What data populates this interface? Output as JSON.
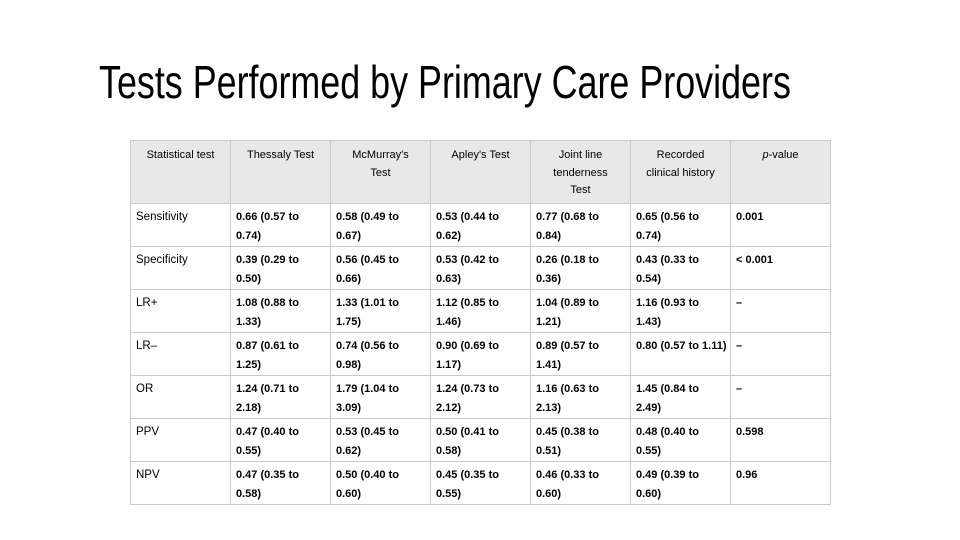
{
  "slide": {
    "title": "Tests Performed by Primary Care Providers"
  },
  "table": {
    "headers": [
      "Statistical test",
      "Thessaly Test",
      "McMurray's\nTest",
      "Apley's Test",
      "Joint line\ntenderness\nTest",
      "Recorded\nclinical history"
    ],
    "p_header": {
      "italic": "p",
      "rest": "-value"
    },
    "rows": [
      {
        "label": "Sensitivity",
        "cells": [
          "0.66 (0.57 to 0.74)",
          "0.58 (0.49 to 0.67)",
          "0.53 (0.44 to 0.62)",
          "0.77 (0.68 to 0.84)",
          "0.65 (0.56 to 0.74)",
          "0.001"
        ]
      },
      {
        "label": "Specificity",
        "cells": [
          "0.39 (0.29 to 0.50)",
          "0.56 (0.45 to 0.66)",
          "0.53 (0.42 to 0.63)",
          "0.26 (0.18 to 0.36)",
          "0.43 (0.33 to 0.54)",
          "< 0.001"
        ]
      },
      {
        "label": "LR+",
        "cells": [
          "1.08 (0.88 to 1.33)",
          "1.33 (1.01 to 1.75)",
          "1.12 (0.85 to 1.46)",
          "1.04 (0.89 to 1.21)",
          "1.16 (0.93 to 1.43)",
          "–"
        ]
      },
      {
        "label": "LR–",
        "cells": [
          "0.87 (0.61 to 1.25)",
          "0.74 (0.56 to 0.98)",
          "0.90 (0.69 to 1.17)",
          "0.89 (0.57 to 1.41)",
          "0.80 (0.57 to 1.11)",
          "–"
        ]
      },
      {
        "label": "OR",
        "cells": [
          "1.24 (0.71 to 2.18)",
          "1.79 (1.04 to 3.09)",
          "1.24 (0.73 to 2.12)",
          "1.16 (0.63 to 2.13)",
          "1.45 (0.84 to 2.49)",
          "–"
        ]
      },
      {
        "label": "PPV",
        "cells": [
          "0.47 (0.40 to 0.55)",
          "0.53 (0.45 to 0.62)",
          "0.50 (0.41 to 0.58)",
          "0.45 (0.38 to 0.51)",
          "0.48 (0.40 to 0.55)",
          "0.598"
        ]
      },
      {
        "label": "NPV",
        "cells": [
          "0.47 (0.35 to 0.58)",
          "0.50 (0.40 to 0.60)",
          "0.45 (0.35 to 0.55)",
          "0.46 (0.33 to 0.60)",
          "0.49 (0.39 to 0.60)",
          "0.96"
        ]
      }
    ]
  },
  "colors": {
    "background": "#ffffff",
    "header_bg": "#e9e8e8",
    "grid_border": "#cbcbcb",
    "text": "#000000"
  }
}
